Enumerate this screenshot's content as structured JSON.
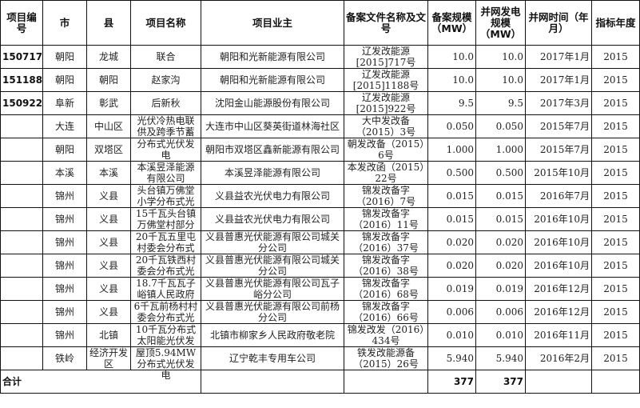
{
  "headers": [
    "项目编号",
    "市",
    "县",
    "项目名称",
    "项目业主",
    "备案文件名称及文号",
    "备案规模（MW）",
    "并网发电规模（MW）",
    "并网时间（年月）",
    "指标年度"
  ],
  "rows": [
    {
      "id": "150717",
      "city": "朝阳",
      "county": "龙城",
      "name": "联合",
      "owner": "朝阳和光新能源有限公司",
      "doc": "辽发改能源[2015]717号",
      "filed": "10.0",
      "grid": "10.0",
      "time": "2017年1月",
      "year": "2015"
    },
    {
      "id": "151188",
      "city": "朝阳",
      "county": "朝阳",
      "name": "赵家沟",
      "owner": "朝阳和光新能源有限公司",
      "doc": "辽发改能源[2015]1188号",
      "filed": "10.0",
      "grid": "10.0",
      "time": "2017年1月",
      "year": "2015"
    },
    {
      "id": "150922",
      "city": "阜新",
      "county": "彰武",
      "name": "后新秋",
      "owner": "沈阳金山能源股份有限公司",
      "doc": "辽发改能源[2015]922号",
      "filed": "9.5",
      "grid": "9.5",
      "time": "2017年3月",
      "year": "2015"
    },
    {
      "id": "",
      "city": "大连",
      "county": "中山区",
      "name": "光伏冷热电联供及跨季节蓄",
      "owner": "大连市中山区葵英街道林海社区",
      "doc": "大中发改备（2015）3号",
      "filed": "0.050",
      "grid": "0.050",
      "time": "2015年7月",
      "year": "2015"
    },
    {
      "id": "",
      "city": "朝阳",
      "county": "双塔区",
      "name": "分布式光伏发电",
      "owner": "朝阳市双塔区鑫新能源有限公司",
      "doc": "朝发改备（2015）6号",
      "filed": "1.000",
      "grid": "1.000",
      "time": "2015年7月",
      "year": "2015"
    },
    {
      "id": "",
      "city": "本溪",
      "county": "本溪",
      "name": "本溪昱泽能源有限公司",
      "owner": "本溪昱泽能源有限公司",
      "doc": "本发改函（2015）22号",
      "filed": "0.500",
      "grid": "0.500",
      "time": "2015年10月",
      "year": "2015"
    },
    {
      "id": "",
      "city": "锦州",
      "county": "义县",
      "name": "头台镇万佛堂小学分布式光",
      "owner": "义县益农光伏电力有限公司",
      "doc": "锦发改备字（2016）7号",
      "filed": "0.015",
      "grid": "0.015",
      "time": "2016年7月",
      "year": "2015"
    },
    {
      "id": "",
      "city": "锦州",
      "county": "义县",
      "name": "15千瓦头台镇万佛堂村部分",
      "owner": "义县益农光伏电力有限公司",
      "doc": "锦发改备字（2016）11号",
      "filed": "0.015",
      "grid": "0.015",
      "time": "2016年10月",
      "year": "2015"
    },
    {
      "id": "",
      "city": "锦州",
      "county": "义县",
      "name": "20千瓦五里屯村委会分布式",
      "owner": "义县普惠光伏能源有限公司城关分公司",
      "doc": "锦发改备字（2016）37号",
      "filed": "0.020",
      "grid": "0.020",
      "time": "2016年10月",
      "year": "2015"
    },
    {
      "id": "",
      "city": "锦州",
      "county": "义县",
      "name": "20千瓦铁西村委会分布式光",
      "owner": "义县普惠光伏能源有限公司城关分公司",
      "doc": "锦发改备字（2016）38号",
      "filed": "0.020",
      "grid": "0.020",
      "time": "2016年10月",
      "year": "2015"
    },
    {
      "id": "",
      "city": "锦州",
      "county": "义县",
      "name": "18.7千瓦瓦子峪镇人民政府",
      "owner": "义县普惠光伏能源有限公司瓦子峪分公司",
      "doc": "锦发改备字（2016）68号",
      "filed": "0.019",
      "grid": "0.019",
      "time": "2016年12月",
      "year": "2015"
    },
    {
      "id": "",
      "city": "锦州",
      "county": "义县",
      "name": "6千瓦前杨村村委会分布式光",
      "owner": "义县普惠光伏能源有限公司前杨分公司",
      "doc": "锦发改备字（2016）66号",
      "filed": "0.006",
      "grid": "0.006",
      "time": "2016年12月",
      "year": "2015"
    },
    {
      "id": "",
      "city": "锦州",
      "county": "北镇",
      "name": "10千瓦分布式太阳能光伏发",
      "owner": "北镇市柳家乡人民政府敬老院",
      "doc": "锦发改发（2016）434号",
      "filed": "0.010",
      "grid": "0.010",
      "time": "2016年11月",
      "year": "2015"
    },
    {
      "id": "",
      "city": "铁岭",
      "county": "经济开发区",
      "name": "屋顶5.94MW分布式光伏发电",
      "owner": "辽宁乾丰专用车公司",
      "doc": "铁发改能源备（2015）26号",
      "filed": "5.940",
      "grid": "5.940",
      "time": "2016年2月",
      "year": "2015"
    }
  ],
  "total": {
    "label": "合计",
    "filed": "377",
    "grid": "377"
  }
}
